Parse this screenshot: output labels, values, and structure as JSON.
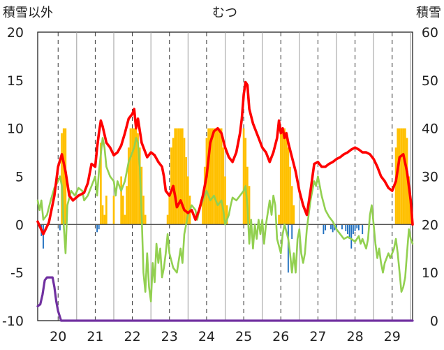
{
  "chart_data": {
    "type": "combo",
    "title": "むつ",
    "ylabel_left": "積雪以外",
    "ylabel_right": "積雪",
    "ylim_left": [
      -10,
      20
    ],
    "ylim_right": [
      0,
      60
    ],
    "left_ticks": [
      "20",
      "15",
      "10",
      "5",
      "0",
      "-5",
      "-10"
    ],
    "right_ticks": [
      "60",
      "50",
      "40",
      "30",
      "20",
      "10",
      "0"
    ],
    "x_labels": [
      "20",
      "21",
      "22",
      "23",
      "24",
      "25",
      "26",
      "27",
      "28",
      "29"
    ],
    "x_label_pos": [
      20,
      21,
      22,
      23,
      24,
      25,
      26,
      27,
      28,
      29
    ],
    "xlim": [
      19.45,
      29.55
    ],
    "grid": "dashed-vertical",
    "red_line": [
      [
        19.45,
        0.3
      ],
      [
        19.6,
        -1.0
      ],
      [
        19.75,
        0.2
      ],
      [
        19.9,
        3.0
      ],
      [
        20.0,
        6.0
      ],
      [
        20.1,
        7.3
      ],
      [
        20.2,
        5.5
      ],
      [
        20.3,
        3.0
      ],
      [
        20.4,
        2.5
      ],
      [
        20.55,
        3.0
      ],
      [
        20.7,
        3.3
      ],
      [
        20.8,
        4.3
      ],
      [
        20.9,
        6.3
      ],
      [
        21.0,
        6.0
      ],
      [
        21.05,
        8.0
      ],
      [
        21.1,
        9.5
      ],
      [
        21.15,
        10.8
      ],
      [
        21.2,
        10.2
      ],
      [
        21.3,
        8.5
      ],
      [
        21.4,
        8.0
      ],
      [
        21.5,
        7.2
      ],
      [
        21.6,
        7.5
      ],
      [
        21.7,
        8.2
      ],
      [
        21.8,
        9.5
      ],
      [
        21.9,
        11.0
      ],
      [
        22.0,
        11.5
      ],
      [
        22.05,
        12.0
      ],
      [
        22.1,
        10.0
      ],
      [
        22.15,
        11.0
      ],
      [
        22.25,
        8.5
      ],
      [
        22.4,
        7.0
      ],
      [
        22.5,
        7.5
      ],
      [
        22.6,
        7.2
      ],
      [
        22.7,
        6.5
      ],
      [
        22.8,
        6.0
      ],
      [
        22.85,
        5.0
      ],
      [
        22.9,
        3.5
      ],
      [
        23.0,
        3.0
      ],
      [
        23.1,
        4.0
      ],
      [
        23.15,
        3.0
      ],
      [
        23.2,
        1.8
      ],
      [
        23.3,
        2.5
      ],
      [
        23.4,
        1.5
      ],
      [
        23.5,
        1.2
      ],
      [
        23.6,
        1.5
      ],
      [
        23.7,
        0.5
      ],
      [
        23.8,
        1.5
      ],
      [
        23.9,
        3.0
      ],
      [
        24.0,
        5.0
      ],
      [
        24.1,
        8.5
      ],
      [
        24.2,
        9.7
      ],
      [
        24.3,
        10.0
      ],
      [
        24.4,
        9.5
      ],
      [
        24.5,
        8.0
      ],
      [
        24.6,
        7.0
      ],
      [
        24.7,
        6.5
      ],
      [
        24.8,
        7.5
      ],
      [
        24.9,
        9.5
      ],
      [
        24.95,
        11.0
      ],
      [
        25.0,
        13.5
      ],
      [
        25.05,
        14.8
      ],
      [
        25.1,
        14.5
      ],
      [
        25.15,
        12.0
      ],
      [
        25.25,
        10.5
      ],
      [
        25.4,
        9.0
      ],
      [
        25.5,
        8.0
      ],
      [
        25.6,
        7.5
      ],
      [
        25.7,
        6.5
      ],
      [
        25.8,
        7.5
      ],
      [
        25.9,
        9.0
      ],
      [
        25.95,
        10.8
      ],
      [
        26.0,
        9.5
      ],
      [
        26.05,
        10.0
      ],
      [
        26.1,
        9.0
      ],
      [
        26.15,
        9.5
      ],
      [
        26.2,
        8.5
      ],
      [
        26.3,
        7.0
      ],
      [
        26.4,
        5.5
      ],
      [
        26.5,
        3.5
      ],
      [
        26.6,
        2.0
      ],
      [
        26.7,
        1.0
      ],
      [
        26.8,
        3.5
      ],
      [
        26.9,
        6.3
      ],
      [
        27.0,
        6.5
      ],
      [
        27.1,
        6.0
      ],
      [
        27.2,
        6.0
      ],
      [
        27.3,
        6.3
      ],
      [
        27.4,
        6.5
      ],
      [
        27.5,
        6.8
      ],
      [
        27.6,
        7.0
      ],
      [
        27.7,
        7.3
      ],
      [
        27.8,
        7.5
      ],
      [
        27.9,
        7.8
      ],
      [
        28.0,
        8.0
      ],
      [
        28.1,
        7.8
      ],
      [
        28.2,
        7.5
      ],
      [
        28.3,
        7.5
      ],
      [
        28.4,
        7.3
      ],
      [
        28.5,
        6.8
      ],
      [
        28.6,
        6.0
      ],
      [
        28.7,
        5.0
      ],
      [
        28.8,
        4.5
      ],
      [
        28.9,
        3.8
      ],
      [
        29.0,
        3.5
      ],
      [
        29.1,
        4.5
      ],
      [
        29.2,
        7.0
      ],
      [
        29.3,
        7.3
      ],
      [
        29.4,
        5.5
      ],
      [
        29.5,
        2.5
      ],
      [
        29.55,
        0.0
      ]
    ],
    "green_line": [
      [
        19.45,
        2.5
      ],
      [
        19.5,
        1.5
      ],
      [
        19.55,
        2.5
      ],
      [
        19.6,
        0.5
      ],
      [
        19.7,
        1.0
      ],
      [
        19.8,
        2.5
      ],
      [
        19.9,
        3.8
      ],
      [
        20.0,
        4.5
      ],
      [
        20.05,
        5.0
      ],
      [
        20.1,
        4.0
      ],
      [
        20.15,
        0.0
      ],
      [
        20.2,
        -3.0
      ],
      [
        20.25,
        2.0
      ],
      [
        20.35,
        3.5
      ],
      [
        20.45,
        3.0
      ],
      [
        20.55,
        3.8
      ],
      [
        20.65,
        3.5
      ],
      [
        20.7,
        2.5
      ],
      [
        20.8,
        3.0
      ],
      [
        20.9,
        4.0
      ],
      [
        21.0,
        5.0
      ],
      [
        21.05,
        3.0
      ],
      [
        21.1,
        5.5
      ],
      [
        21.2,
        9.0
      ],
      [
        21.25,
        8.0
      ],
      [
        21.3,
        6.0
      ],
      [
        21.4,
        5.0
      ],
      [
        21.5,
        4.5
      ],
      [
        21.55,
        3.0
      ],
      [
        21.6,
        4.5
      ],
      [
        21.7,
        3.5
      ],
      [
        21.8,
        4.5
      ],
      [
        21.9,
        6.5
      ],
      [
        22.0,
        7.5
      ],
      [
        22.05,
        8.0
      ],
      [
        22.1,
        9.0
      ],
      [
        22.15,
        8.5
      ],
      [
        22.2,
        6.0
      ],
      [
        22.25,
        1.0
      ],
      [
        22.3,
        -5.0
      ],
      [
        22.35,
        -7.0
      ],
      [
        22.4,
        -3.0
      ],
      [
        22.45,
        -6.5
      ],
      [
        22.5,
        -8.0
      ],
      [
        22.55,
        -4.0
      ],
      [
        22.6,
        -6.0
      ],
      [
        22.65,
        -2.0
      ],
      [
        22.7,
        -4.0
      ],
      [
        22.75,
        -2.5
      ],
      [
        22.8,
        -5.5
      ],
      [
        22.85,
        -4.5
      ],
      [
        22.9,
        -3.0
      ],
      [
        22.95,
        -1.0
      ],
      [
        23.0,
        -3.0
      ],
      [
        23.1,
        -4.5
      ],
      [
        23.2,
        -5.0
      ],
      [
        23.3,
        -2.5
      ],
      [
        23.35,
        -4.0
      ],
      [
        23.4,
        -1.0
      ],
      [
        23.5,
        1.0
      ],
      [
        23.6,
        2.0
      ],
      [
        23.7,
        1.5
      ],
      [
        23.75,
        0.5
      ],
      [
        23.8,
        1.5
      ],
      [
        23.9,
        2.5
      ],
      [
        24.0,
        3.5
      ],
      [
        24.1,
        2.5
      ],
      [
        24.2,
        3.0
      ],
      [
        24.3,
        2.0
      ],
      [
        24.4,
        2.5
      ],
      [
        24.45,
        1.5
      ],
      [
        24.5,
        0.0
      ],
      [
        24.6,
        1.0
      ],
      [
        24.65,
        2.0
      ],
      [
        24.7,
        2.8
      ],
      [
        24.8,
        2.5
      ],
      [
        24.9,
        3.0
      ],
      [
        25.0,
        3.5
      ],
      [
        25.05,
        4.0
      ],
      [
        25.1,
        2.0
      ],
      [
        25.15,
        -2.0
      ],
      [
        25.2,
        0.5
      ],
      [
        25.25,
        -2.5
      ],
      [
        25.3,
        0.0
      ],
      [
        25.35,
        -1.5
      ],
      [
        25.4,
        0.5
      ],
      [
        25.45,
        -1.0
      ],
      [
        25.5,
        0.5
      ],
      [
        25.55,
        -2.0
      ],
      [
        25.6,
        0.0
      ],
      [
        25.7,
        2.5
      ],
      [
        25.75,
        1.0
      ],
      [
        25.8,
        3.0
      ],
      [
        25.85,
        2.0
      ],
      [
        25.9,
        -1.5
      ],
      [
        26.0,
        -3.0
      ],
      [
        26.05,
        -1.0
      ],
      [
        26.1,
        0.0
      ],
      [
        26.2,
        -1.5
      ],
      [
        26.25,
        -3.0
      ],
      [
        26.3,
        -5.0
      ],
      [
        26.35,
        -3.0
      ],
      [
        26.4,
        -5.0
      ],
      [
        26.45,
        -1.5
      ],
      [
        26.5,
        -0.5
      ],
      [
        26.55,
        -3.0
      ],
      [
        26.6,
        -4.0
      ],
      [
        26.65,
        -3.0
      ],
      [
        26.7,
        -0.5
      ],
      [
        26.75,
        1.0
      ],
      [
        26.8,
        2.5
      ],
      [
        26.85,
        3.5
      ],
      [
        26.9,
        4.5
      ],
      [
        26.95,
        4.0
      ],
      [
        27.0,
        5.0
      ],
      [
        27.05,
        4.0
      ],
      [
        27.1,
        3.0
      ],
      [
        27.2,
        1.5
      ],
      [
        27.3,
        0.8
      ],
      [
        27.4,
        0.3
      ],
      [
        27.5,
        -0.5
      ],
      [
        27.6,
        -1.0
      ],
      [
        27.7,
        -1.5
      ],
      [
        27.8,
        -1.3
      ],
      [
        27.9,
        -1.5
      ],
      [
        28.0,
        -1.8
      ],
      [
        28.1,
        -1.2
      ],
      [
        28.15,
        -2.0
      ],
      [
        28.2,
        -1.5
      ],
      [
        28.3,
        -2.5
      ],
      [
        28.35,
        -1.5
      ],
      [
        28.4,
        1.0
      ],
      [
        28.45,
        2.0
      ],
      [
        28.5,
        0.0
      ],
      [
        28.55,
        -2.0
      ],
      [
        28.6,
        -3.5
      ],
      [
        28.65,
        -2.5
      ],
      [
        28.7,
        -4.0
      ],
      [
        28.75,
        -5.0
      ],
      [
        28.8,
        -4.0
      ],
      [
        28.85,
        -3.5
      ],
      [
        28.9,
        -3.0
      ],
      [
        28.95,
        -3.5
      ],
      [
        29.0,
        -3.0
      ],
      [
        29.05,
        -2.5
      ],
      [
        29.1,
        -1.5
      ],
      [
        29.15,
        -3.0
      ],
      [
        29.2,
        -5.0
      ],
      [
        29.25,
        -7.0
      ],
      [
        29.3,
        -6.5
      ],
      [
        29.35,
        -5.5
      ],
      [
        29.4,
        -3.0
      ],
      [
        29.45,
        -0.5
      ],
      [
        29.5,
        -1.5
      ],
      [
        29.55,
        -2.0
      ]
    ],
    "purple_line": [
      [
        19.45,
        -8.5
      ],
      [
        19.52,
        -8.3
      ],
      [
        19.58,
        -7.3
      ],
      [
        19.64,
        -5.8
      ],
      [
        19.7,
        -5.5
      ],
      [
        19.8,
        -5.5
      ],
      [
        19.85,
        -5.5
      ],
      [
        19.9,
        -6.5
      ],
      [
        19.95,
        -8.0
      ],
      [
        20.0,
        -9.0
      ],
      [
        20.08,
        -10.0
      ],
      [
        20.15,
        -10.0
      ],
      [
        29.55,
        -10.0
      ]
    ],
    "yellow_bars": [
      [
        20.1,
        9.5
      ],
      [
        20.15,
        10.0
      ],
      [
        20.2,
        10.0
      ],
      [
        21.15,
        8.5
      ],
      [
        21.2,
        2.0
      ],
      [
        21.25,
        1.0
      ],
      [
        21.3,
        3.0
      ],
      [
        21.5,
        3.0
      ],
      [
        21.7,
        5.0
      ],
      [
        21.75,
        3.0
      ],
      [
        21.8,
        1.0
      ],
      [
        21.85,
        4.0
      ],
      [
        21.9,
        8.0
      ],
      [
        21.95,
        10.0
      ],
      [
        22.0,
        10.0
      ],
      [
        22.05,
        10.0
      ],
      [
        22.1,
        10.0
      ],
      [
        22.15,
        9.5
      ],
      [
        22.2,
        8.0
      ],
      [
        22.25,
        6.0
      ],
      [
        22.3,
        3.0
      ],
      [
        22.35,
        1.0
      ],
      [
        22.95,
        1.0
      ],
      [
        23.0,
        3.0
      ],
      [
        23.05,
        8.0
      ],
      [
        23.1,
        9.0
      ],
      [
        23.15,
        10.0
      ],
      [
        23.2,
        10.0
      ],
      [
        23.25,
        10.0
      ],
      [
        23.3,
        10.0
      ],
      [
        23.35,
        10.0
      ],
      [
        23.4,
        9.0
      ],
      [
        23.45,
        7.0
      ],
      [
        23.5,
        5.0
      ],
      [
        23.55,
        3.0
      ],
      [
        23.9,
        3.0
      ],
      [
        23.95,
        6.0
      ],
      [
        24.0,
        9.0
      ],
      [
        24.05,
        10.0
      ],
      [
        24.1,
        10.0
      ],
      [
        24.15,
        10.0
      ],
      [
        24.2,
        10.0
      ],
      [
        24.25,
        10.0
      ],
      [
        24.3,
        10.0
      ],
      [
        24.35,
        10.0
      ],
      [
        24.4,
        10.0
      ],
      [
        24.45,
        8.0
      ],
      [
        24.5,
        5.0
      ],
      [
        24.55,
        2.0
      ],
      [
        25.0,
        10.0
      ],
      [
        25.05,
        9.0
      ],
      [
        25.1,
        6.0
      ],
      [
        25.15,
        4.0
      ],
      [
        25.95,
        1.0
      ],
      [
        26.0,
        10.0
      ],
      [
        26.05,
        10.0
      ],
      [
        26.1,
        10.0
      ],
      [
        26.15,
        9.0
      ],
      [
        26.2,
        8.0
      ],
      [
        26.25,
        6.0
      ],
      [
        26.3,
        4.0
      ],
      [
        26.35,
        2.0
      ],
      [
        29.1,
        8.0
      ],
      [
        29.15,
        10.0
      ],
      [
        29.2,
        10.0
      ],
      [
        29.25,
        10.0
      ],
      [
        29.3,
        10.0
      ],
      [
        29.35,
        10.0
      ],
      [
        29.4,
        9.0
      ],
      [
        29.45,
        5.0
      ],
      [
        29.5,
        2.0
      ]
    ],
    "blue_bars": [
      [
        19.55,
        -1.2
      ],
      [
        19.6,
        -2.5
      ],
      [
        20.05,
        -0.6
      ],
      [
        21.05,
        -0.8
      ],
      [
        21.1,
        -0.5
      ],
      [
        26.2,
        -5.0
      ],
      [
        26.3,
        -1.5
      ],
      [
        27.15,
        -1.0
      ],
      [
        27.2,
        -0.6
      ],
      [
        27.35,
        -0.5
      ],
      [
        27.4,
        -0.8
      ],
      [
        27.45,
        -0.6
      ],
      [
        27.5,
        -0.6
      ],
      [
        27.65,
        -0.5
      ],
      [
        27.75,
        -0.7
      ],
      [
        27.8,
        -1.0
      ],
      [
        27.85,
        -1.5
      ],
      [
        27.9,
        -2.5
      ],
      [
        27.95,
        -1.0
      ],
      [
        28.0,
        -0.7
      ],
      [
        28.05,
        -0.4
      ],
      [
        28.1,
        -0.6
      ],
      [
        28.2,
        -1.0
      ]
    ],
    "colors": {
      "red": "#ff0000",
      "green": "#92d050",
      "purple": "#7030a0",
      "yellow": "#ffc000",
      "blue": "#1f6fbf",
      "grid": "#333333"
    }
  }
}
